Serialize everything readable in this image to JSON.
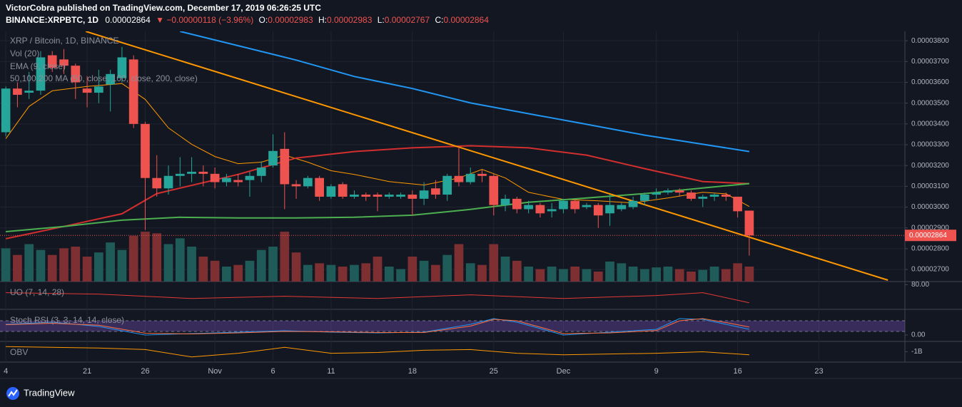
{
  "header": {
    "line1": "VictorCobra published on TradingView.com, December 17, 2019 06:26:25 UTC",
    "symbol": "BINANCE:XRPBTC, 1D",
    "price": "0.00002864",
    "change": "▼ −0.00000118 (−3.96%)",
    "o_label": "O:",
    "o_value": "0.00002983",
    "h_label": "H:",
    "h_value": "0.00002983",
    "l_label": "L:",
    "l_value": "0.00002767",
    "c_label": "C:",
    "c_value": "0.00002864"
  },
  "legend": [
    "XRP / Bitcoin, 1D, BINANCE",
    "Vol (20)",
    "EMA (9, close)",
    "50,100,200 MA (50, close, 100, close, 200, close)"
  ],
  "footer": "TradingView",
  "chart_data": {
    "type": "candlestick",
    "up_color": "#26a69a",
    "down_color": "#ef5350",
    "vol_up_color": "#1f5c59",
    "vol_down_color": "#7d2f31",
    "ylim": [
      2.642e-05,
      3.845e-05
    ],
    "yticks": [
      {
        "value": 2.7e-05,
        "label": "0.00002700"
      },
      {
        "value": 2.8e-05,
        "label": "0.00002800"
      },
      {
        "value": 2.9e-05,
        "label": "0.00002900"
      },
      {
        "value": 3e-05,
        "label": "0.00003000"
      },
      {
        "value": 3.1e-05,
        "label": "0.00003100"
      },
      {
        "value": 3.2e-05,
        "label": "0.00003200"
      },
      {
        "value": 3.3e-05,
        "label": "0.00003300"
      },
      {
        "value": 3.4e-05,
        "label": "0.00003400"
      },
      {
        "value": 3.5e-05,
        "label": "0.00003500"
      },
      {
        "value": 3.6e-05,
        "label": "0.00003600"
      },
      {
        "value": 3.7e-05,
        "label": "0.00003700"
      },
      {
        "value": 3.8e-05,
        "label": "0.00003800"
      }
    ],
    "xlim": [
      -0.5,
      77.4
    ],
    "xticks": [
      {
        "value": 0,
        "label": "4"
      },
      {
        "value": 7,
        "label": "21"
      },
      {
        "value": 12,
        "label": "26"
      },
      {
        "value": 18,
        "label": "Nov"
      },
      {
        "value": 23,
        "label": "6"
      },
      {
        "value": 28,
        "label": "11"
      },
      {
        "value": 35,
        "label": "18"
      },
      {
        "value": 42,
        "label": "25"
      },
      {
        "value": 48,
        "label": "Dec"
      },
      {
        "value": 56,
        "label": "9"
      },
      {
        "value": 63,
        "label": "16"
      },
      {
        "value": 70,
        "label": "23"
      }
    ],
    "last_price": {
      "value": 2.864e-05,
      "label": "0.00002864"
    },
    "candles": [
      {
        "o": 3.36e-05,
        "h": 3.58e-05,
        "l": 3.34e-05,
        "c": 3.57e-05
      },
      {
        "o": 3.57e-05,
        "h": 3.6e-05,
        "l": 3.48e-05,
        "c": 3.54e-05
      },
      {
        "o": 3.55e-05,
        "h": 3.65e-05,
        "l": 3.52e-05,
        "c": 3.56e-05
      },
      {
        "o": 3.56e-05,
        "h": 3.75e-05,
        "l": 3.54e-05,
        "c": 3.72e-05
      },
      {
        "o": 3.73e-05,
        "h": 3.75e-05,
        "l": 3.65e-05,
        "c": 3.67e-05
      },
      {
        "o": 3.71e-05,
        "h": 3.76e-05,
        "l": 3.64e-05,
        "c": 3.68e-05
      },
      {
        "o": 3.68e-05,
        "h": 3.69e-05,
        "l": 3.52e-05,
        "c": 3.6e-05
      },
      {
        "o": 3.57e-05,
        "h": 3.63e-05,
        "l": 3.48e-05,
        "c": 3.55e-05
      },
      {
        "o": 3.55e-05,
        "h": 3.66e-05,
        "l": 3.5e-05,
        "c": 3.58e-05
      },
      {
        "o": 3.59e-05,
        "h": 3.66e-05,
        "l": 3.46e-05,
        "c": 3.64e-05
      },
      {
        "o": 3.62e-05,
        "h": 3.77e-05,
        "l": 3.6e-05,
        "c": 3.72e-05
      },
      {
        "o": 3.71e-05,
        "h": 3.73e-05,
        "l": 3.38e-05,
        "c": 3.4e-05
      },
      {
        "o": 3.4e-05,
        "h": 3.41e-05,
        "l": 2.89e-05,
        "c": 3.14e-05
      },
      {
        "o": 3.14e-05,
        "h": 3.25e-05,
        "l": 3.05e-05,
        "c": 3.09e-05
      },
      {
        "o": 3.09e-05,
        "h": 3.2e-05,
        "l": 3.06e-05,
        "c": 3.15e-05
      },
      {
        "o": 3.15e-05,
        "h": 3.24e-05,
        "l": 3.1e-05,
        "c": 3.16e-05
      },
      {
        "o": 3.16e-05,
        "h": 3.24e-05,
        "l": 3.12e-05,
        "c": 3.17e-05
      },
      {
        "o": 3.17e-05,
        "h": 3.2e-05,
        "l": 3.1e-05,
        "c": 3.16e-05
      },
      {
        "o": 3.16e-05,
        "h": 3.19e-05,
        "l": 3.09e-05,
        "c": 3.12e-05
      },
      {
        "o": 3.12e-05,
        "h": 3.16e-05,
        "l": 3.1e-05,
        "c": 3.14e-05
      },
      {
        "o": 3.13e-05,
        "h": 3.16e-05,
        "l": 3.1e-05,
        "c": 3.12e-05
      },
      {
        "o": 3.13e-05,
        "h": 3.17e-05,
        "l": 3.05e-05,
        "c": 3.15e-05
      },
      {
        "o": 3.15e-05,
        "h": 3.22e-05,
        "l": 3.12e-05,
        "c": 3.19e-05
      },
      {
        "o": 3.2e-05,
        "h": 3.35e-05,
        "l": 3.19e-05,
        "c": 3.27e-05
      },
      {
        "o": 3.28e-05,
        "h": 3.36e-05,
        "l": 2.99e-05,
        "c": 3.11e-05
      },
      {
        "o": 3.11e-05,
        "h": 3.13e-05,
        "l": 3.04e-05,
        "c": 3.1e-05
      },
      {
        "o": 3.1e-05,
        "h": 3.15e-05,
        "l": 3.09e-05,
        "c": 3.14e-05
      },
      {
        "o": 3.14e-05,
        "h": 3.15e-05,
        "l": 3.03e-05,
        "c": 3.05e-05
      },
      {
        "o": 3.05e-05,
        "h": 3.11e-05,
        "l": 3.04e-05,
        "c": 3.1e-05
      },
      {
        "o": 3.11e-05,
        "h": 3.12e-05,
        "l": 3.04e-05,
        "c": 3.05e-05
      },
      {
        "o": 3.05e-05,
        "h": 3.08e-05,
        "l": 3.04e-05,
        "c": 3.06e-05
      },
      {
        "o": 3.06e-05,
        "h": 3.07e-05,
        "l": 3.03e-05,
        "c": 3.05e-05
      },
      {
        "o": 3.06e-05,
        "h": 3.07e-05,
        "l": 2.98e-05,
        "c": 3.05e-05
      },
      {
        "o": 3.05e-05,
        "h": 3.07e-05,
        "l": 3.04e-05,
        "c": 3.06e-05
      },
      {
        "o": 3.05e-05,
        "h": 3.07e-05,
        "l": 3.04e-05,
        "c": 3.06e-05
      },
      {
        "o": 3.06e-05,
        "h": 3.08e-05,
        "l": 2.96e-05,
        "c": 3.04e-05
      },
      {
        "o": 3.04e-05,
        "h": 3.12e-05,
        "l": 3.01e-05,
        "c": 3.08e-05
      },
      {
        "o": 3.09e-05,
        "h": 3.13e-05,
        "l": 3.04e-05,
        "c": 3.06e-05
      },
      {
        "o": 3.06e-05,
        "h": 3.16e-05,
        "l": 3.03e-05,
        "c": 3.15e-05
      },
      {
        "o": 3.15e-05,
        "h": 3.29e-05,
        "l": 3.1e-05,
        "c": 3.12e-05
      },
      {
        "o": 3.12e-05,
        "h": 3.19e-05,
        "l": 3.11e-05,
        "c": 3.16e-05
      },
      {
        "o": 3.16e-05,
        "h": 3.18e-05,
        "l": 3.12e-05,
        "c": 3.15e-05
      },
      {
        "o": 3.15e-05,
        "h": 3.16e-05,
        "l": 2.96e-05,
        "c": 3.01e-05
      },
      {
        "o": 3.01e-05,
        "h": 3.06e-05,
        "l": 2.98e-05,
        "c": 3.04e-05
      },
      {
        "o": 3.04e-05,
        "h": 3.05e-05,
        "l": 2.97e-05,
        "c": 2.99e-05
      },
      {
        "o": 2.99e-05,
        "h": 3.03e-05,
        "l": 2.97e-05,
        "c": 3.01e-05
      },
      {
        "o": 3.01e-05,
        "h": 3.02e-05,
        "l": 2.95e-05,
        "c": 2.97e-05
      },
      {
        "o": 2.98e-05,
        "h": 3.02e-05,
        "l": 2.95e-05,
        "c": 2.99e-05
      },
      {
        "o": 2.99e-05,
        "h": 3.04e-05,
        "l": 2.97e-05,
        "c": 3.03e-05
      },
      {
        "o": 3.03e-05,
        "h": 3.04e-05,
        "l": 2.97e-05,
        "c": 2.99e-05
      },
      {
        "o": 3e-05,
        "h": 3.02e-05,
        "l": 2.99e-05,
        "c": 3.01e-05
      },
      {
        "o": 3.01e-05,
        "h": 3.02e-05,
        "l": 2.9e-05,
        "c": 2.96e-05
      },
      {
        "o": 2.97e-05,
        "h": 3.06e-05,
        "l": 2.91e-05,
        "c": 3.01e-05
      },
      {
        "o": 2.99e-05,
        "h": 3.02e-05,
        "l": 2.98e-05,
        "c": 3.01e-05
      },
      {
        "o": 3e-05,
        "h": 3.05e-05,
        "l": 2.99e-05,
        "c": 3.03e-05
      },
      {
        "o": 3.03e-05,
        "h": 3.07e-05,
        "l": 3.01e-05,
        "c": 3.06e-05
      },
      {
        "o": 3.06e-05,
        "h": 3.09e-05,
        "l": 3.04e-05,
        "c": 3.07e-05
      },
      {
        "o": 3.07e-05,
        "h": 3.09e-05,
        "l": 3.06e-05,
        "c": 3.08e-05
      },
      {
        "o": 3.08e-05,
        "h": 3.09e-05,
        "l": 3.05e-05,
        "c": 3.07e-05
      },
      {
        "o": 3.07e-05,
        "h": 3.08e-05,
        "l": 3.03e-05,
        "c": 3.04e-05
      },
      {
        "o": 3.04e-05,
        "h": 3.06e-05,
        "l": 3e-05,
        "c": 3.05e-05
      },
      {
        "o": 3.05e-05,
        "h": 3.07e-05,
        "l": 3.03e-05,
        "c": 3.06e-05
      },
      {
        "o": 3.06e-05,
        "h": 3.07e-05,
        "l": 3.03e-05,
        "c": 3.05e-05
      },
      {
        "o": 3.05e-05,
        "h": 3.05e-05,
        "l": 2.95e-05,
        "c": 2.98e-05
      },
      {
        "o": 2.983e-05,
        "h": 2.983e-05,
        "l": 2.767e-05,
        "c": 2.864e-05
      }
    ],
    "volume": [
      40,
      32,
      45,
      38,
      32,
      40,
      42,
      30,
      35,
      47,
      38,
      55,
      60,
      58,
      45,
      52,
      42,
      30,
      25,
      18,
      20,
      25,
      38,
      42,
      60,
      35,
      20,
      22,
      20,
      18,
      20,
      22,
      30,
      18,
      15,
      30,
      25,
      20,
      32,
      45,
      22,
      20,
      45,
      30,
      25,
      18,
      15,
      18,
      15,
      18,
      15,
      12,
      24,
      22,
      18,
      15,
      17,
      18,
      15,
      12,
      14,
      18,
      15,
      22,
      18
    ],
    "lines": [
      {
        "color": "#ff9800",
        "width": 1,
        "x": [
          0,
          2,
          4,
          7,
          10,
          12,
          14,
          16,
          18,
          20,
          22,
          24,
          26,
          28,
          30,
          33,
          36,
          39,
          41,
          43,
          45,
          48,
          51,
          54,
          57,
          60,
          62,
          64
        ],
        "values": [
          3.329e-05,
          3.484e-05,
          3.559e-05,
          3.58e-05,
          3.594e-05,
          3.518e-05,
          3.381e-05,
          3.302e-05,
          3.243e-05,
          3.209e-05,
          3.216e-05,
          3.25e-05,
          3.216e-05,
          3.175e-05,
          3.157e-05,
          3.123e-05,
          3.106e-05,
          3.14e-05,
          3.181e-05,
          3.14e-05,
          3.071e-05,
          3.037e-05,
          3.03e-05,
          3.02e-05,
          3.044e-05,
          3.071e-05,
          3.064e-05,
          3.003e-05
        ]
      },
      {
        "color": "#d32f2f",
        "width": 2,
        "x": [
          0,
          5,
          10,
          13,
          20,
          25,
          30,
          35,
          40,
          45,
          50,
          55,
          60,
          64
        ],
        "values": [
          2.848e-05,
          2.907e-05,
          2.968e-05,
          3.065e-05,
          3.157e-05,
          3.236e-05,
          3.267e-05,
          3.285e-05,
          3.295e-05,
          3.285e-05,
          3.25e-05,
          3.185e-05,
          3.123e-05,
          3.113e-05
        ]
      },
      {
        "color": "#4caf50",
        "width": 2,
        "x": [
          0,
          5,
          10,
          15,
          20,
          25,
          30,
          35,
          40,
          45,
          50,
          55,
          60,
          64
        ],
        "values": [
          2.882e-05,
          2.907e-05,
          2.937e-05,
          2.951e-05,
          2.948e-05,
          2.948e-05,
          2.951e-05,
          2.961e-05,
          2.989e-05,
          3.023e-05,
          3.044e-05,
          3.065e-05,
          3.092e-05,
          3.113e-05
        ]
      },
      {
        "color": "#2196f3",
        "width": 2,
        "x": [
          15,
          20,
          25,
          30,
          35,
          40,
          45,
          50,
          55,
          60,
          64
        ],
        "values": [
          3.845e-05,
          3.776e-05,
          3.707e-05,
          3.628e-05,
          3.57e-05,
          3.501e-05,
          3.449e-05,
          3.398e-05,
          3.346e-05,
          3.302e-05,
          3.267e-05
        ]
      },
      {
        "color": "#ff9800",
        "width": 2,
        "x": [
          6.88,
          75.94
        ],
        "values": [
          3.845e-05,
          2.649e-05
        ]
      }
    ],
    "indicators": [
      {
        "label": "UO (7, 14, 28)",
        "ylim": [
          50,
          83
        ],
        "yticks": [
          {
            "value": 80,
            "label": "80.00"
          }
        ],
        "series": [
          {
            "color": "#e53935",
            "x": [
              0,
              8,
              16,
              24,
              32,
              40,
              48,
              56,
              60,
              64
            ],
            "values": [
              70,
              68.2,
              62.7,
              65.5,
              62.7,
              67.3,
              62.7,
              66.4,
              70,
              57.3
            ]
          }
        ]
      },
      {
        "label": "Stoch RSI (3, 3, 14, 14, close)",
        "ylim": [
          -32,
          140
        ],
        "yticks": [
          {
            "value": 0,
            "label": "0.00"
          }
        ],
        "bands": [
          20,
          80
        ],
        "series": [
          {
            "color": "#2196f3",
            "x": [
              0,
              4,
              8,
              12,
              16,
              20,
              24,
              28,
              32,
              36,
              40,
              42,
              44,
              48,
              52,
              56,
              58,
              60,
              62,
              64
            ],
            "values": [
              60,
              72,
              48,
              0,
              8,
              16,
              24,
              16,
              12,
              16,
              60,
              92,
              72,
              0,
              16,
              32,
              92,
              88,
              60,
              32
            ]
          },
          {
            "color": "#ff7043",
            "x": [
              0,
              4,
              8,
              12,
              16,
              20,
              24,
              28,
              32,
              36,
              40,
              42,
              44,
              48,
              52,
              56,
              58,
              60,
              62,
              64
            ],
            "values": [
              58,
              66,
              55,
              10,
              6,
              12,
              20,
              18,
              14,
              14,
              50,
              88,
              80,
              8,
              12,
              25,
              80,
              92,
              70,
              45
            ]
          }
        ]
      },
      {
        "label": "OBV",
        "ylim": [
          -1650000000,
          -350000000
        ],
        "yticks": [
          {
            "value": -1000000000,
            "label": "-1B"
          }
        ],
        "series": [
          {
            "color": "#ff9800",
            "x": [
              0,
              8,
              12,
              16,
              20,
              24,
              28,
              32,
              36,
              40,
              44,
              48,
              52,
              56,
              60,
              64
            ],
            "values": [
              -650000000,
              -750000000,
              -850000000,
              -1350000000,
              -1100000000,
              -700000000,
              -1100000000,
              -1050000000,
              -900000000,
              -850000000,
              -1100000000,
              -1200000000,
              -1150000000,
              -1100000000,
              -1000000000,
              -1200000000
            ]
          }
        ]
      }
    ]
  }
}
